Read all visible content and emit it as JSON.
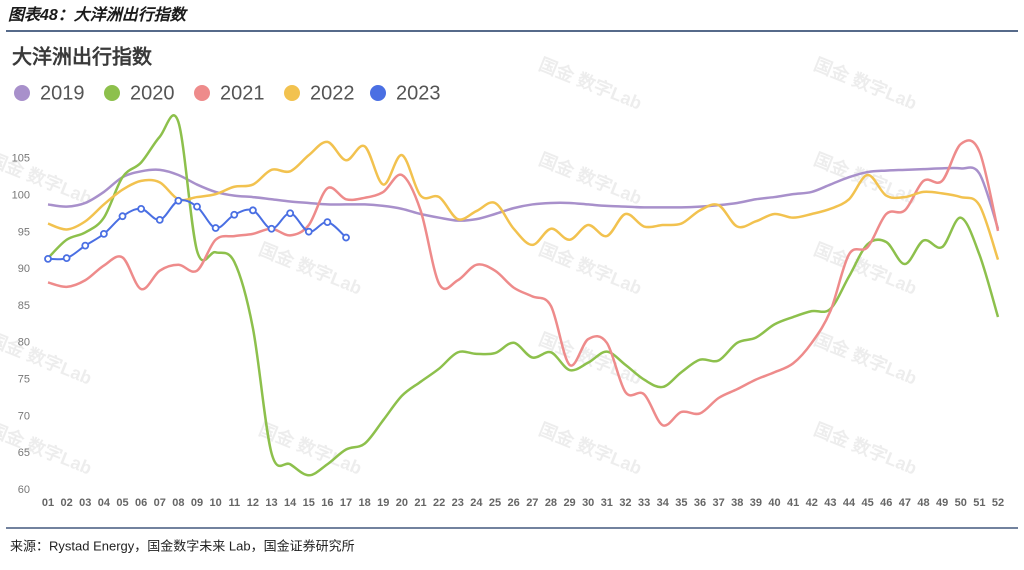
{
  "header": "图表48：大洋洲出行指数",
  "source": "来源：Rystad Energy，国金数字未来 Lab，国金证券研究所",
  "watermark": "国金 数字Lab",
  "chart_data": {
    "type": "line",
    "title": "大洋洲出行指数",
    "categories": [
      "01",
      "02",
      "03",
      "04",
      "05",
      "06",
      "07",
      "08",
      "09",
      "10",
      "11",
      "12",
      "13",
      "14",
      "15",
      "16",
      "17",
      "18",
      "19",
      "20",
      "21",
      "22",
      "23",
      "24",
      "25",
      "26",
      "27",
      "28",
      "29",
      "30",
      "31",
      "32",
      "33",
      "34",
      "35",
      "36",
      "37",
      "38",
      "39",
      "40",
      "41",
      "42",
      "43",
      "44",
      "45",
      "46",
      "47",
      "48",
      "49",
      "50",
      "51",
      "52"
    ],
    "ylim": [
      60,
      110
    ],
    "yticks": [
      60,
      65,
      70,
      75,
      80,
      85,
      90,
      95,
      100,
      105
    ],
    "grid": false,
    "series": [
      {
        "name": "2019",
        "color": "#a890cb",
        "values": [
          98.8,
          98.5,
          99,
          100.5,
          102.5,
          103.3,
          103.5,
          102.8,
          101.5,
          100.5,
          100,
          99.8,
          99.5,
          99.2,
          99,
          98.8,
          98.8,
          98.8,
          98.6,
          98.2,
          97.5,
          97,
          96.6,
          96.8,
          97.5,
          98.3,
          98.8,
          99,
          99,
          98.8,
          98.6,
          98.5,
          98.4,
          98.4,
          98.4,
          98.5,
          98.7,
          99,
          99.5,
          99.8,
          100.2,
          100.5,
          101.5,
          102.5,
          103.2,
          103.4,
          103.5,
          103.6,
          103.7,
          103.7,
          103,
          95.5
        ]
      },
      {
        "name": "2020",
        "color": "#8dc04c",
        "values": [
          91.5,
          94,
          95,
          97,
          102.5,
          104.5,
          108,
          110,
          92.5,
          92.3,
          91,
          82,
          65,
          63.5,
          62,
          63.5,
          65.5,
          66.3,
          69.5,
          72.8,
          74.7,
          76.5,
          78.7,
          78.5,
          78.6,
          80,
          78,
          78.7,
          76.3,
          77.3,
          78.8,
          77,
          75,
          74,
          76,
          77.7,
          77.6,
          80,
          80.7,
          82.5,
          83.5,
          84.3,
          84.6,
          89,
          93.4,
          93.7,
          90.7,
          93.9,
          93,
          97,
          92,
          83.5
        ]
      },
      {
        "name": "2021",
        "color": "#ee8b8b",
        "values": [
          88.2,
          87.6,
          88.5,
          90.5,
          91.6,
          87.3,
          89.8,
          90.6,
          89.8,
          94,
          94.5,
          94.8,
          95.5,
          94.6,
          96,
          101,
          99.5,
          99.7,
          100.5,
          102.8,
          98,
          88,
          88.5,
          90.6,
          89.8,
          87.5,
          86.3,
          85,
          77,
          80.5,
          80,
          73.3,
          73,
          68.8,
          70.6,
          70.4,
          72.5,
          73.7,
          75,
          76,
          77.2,
          80,
          84.3,
          92,
          93,
          97.5,
          98,
          102,
          102,
          107,
          106,
          95.2
        ]
      },
      {
        "name": "2022",
        "color": "#f2c24f",
        "values": [
          96.2,
          95.4,
          96.5,
          98.8,
          100.8,
          102,
          101.8,
          99.5,
          99.8,
          100.2,
          101.2,
          101.5,
          103.5,
          103.3,
          105.5,
          107.3,
          104.8,
          106.7,
          101.5,
          105.5,
          100,
          99.8,
          96.8,
          97.9,
          99,
          95.5,
          93.3,
          95.5,
          94,
          96,
          94.5,
          97.5,
          95.8,
          96,
          96.2,
          98,
          98.7,
          95.8,
          96.5,
          97.5,
          97,
          97.5,
          98.2,
          99.5,
          102.8,
          100,
          99.8,
          100.5,
          100.3,
          99.8,
          98.7,
          91.3
        ]
      },
      {
        "name": "2023",
        "color": "#4a6fe3",
        "markers": true,
        "values": [
          91.4,
          91.5,
          93.2,
          94.8,
          97.2,
          98.2,
          96.7,
          99.3,
          98.5,
          95.6,
          97.4,
          98,
          95.5,
          97.6,
          95.1,
          96.4,
          94.3,
          null,
          null,
          null,
          null,
          null,
          null,
          null,
          null,
          null,
          null,
          null,
          null,
          null,
          null,
          null,
          null,
          null,
          null,
          null,
          null,
          null,
          null,
          null,
          null,
          null,
          null,
          null,
          null,
          null,
          null,
          null,
          null,
          null,
          null,
          null
        ]
      }
    ]
  }
}
